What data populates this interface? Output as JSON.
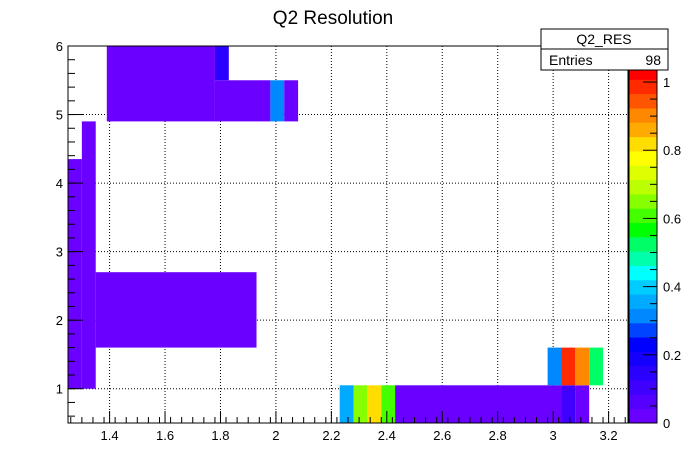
{
  "chart_data": {
    "type": "heatmap",
    "title": "Q2 Resolution",
    "xlabel": "",
    "ylabel": "",
    "xlim": [
      1.25,
      3.27
    ],
    "ylim": [
      0.5,
      6.0
    ],
    "zlim": [
      0,
      1.05
    ],
    "grid": true,
    "x_ticks": [
      1.4,
      1.6,
      1.8,
      2,
      2.2,
      2.4,
      2.6,
      2.8,
      3,
      3.2
    ],
    "x_tick_labels": [
      "1.4",
      "1.6",
      "1.8",
      "2",
      "2.2",
      "2.4",
      "2.6",
      "2.8",
      "3",
      "3.2"
    ],
    "y_ticks": [
      1,
      2,
      3,
      4,
      5,
      6
    ],
    "y_tick_labels": [
      "1",
      "2",
      "3",
      "4",
      "5",
      "6"
    ],
    "z_ticks": [
      0,
      0.2,
      0.4,
      0.6,
      0.8,
      1
    ],
    "z_tick_labels": [
      "0",
      "0.2",
      "0.4",
      "0.6",
      "0.8",
      "1"
    ],
    "palette": [
      "#6a00ff",
      "#5500ff",
      "#3f00ff",
      "#2a00ff",
      "#1500ff",
      "#0000ff",
      "#0044ff",
      "#0088ff",
      "#00aaff",
      "#00ccff",
      "#00ffff",
      "#00ffaa",
      "#00ff66",
      "#00ff00",
      "#44ff00",
      "#88ff00",
      "#bbff00",
      "#ddff00",
      "#ffff00",
      "#ffdd00",
      "#ffaa00",
      "#ff8800",
      "#ff5500",
      "#ff2a00",
      "#ff0000"
    ],
    "stats": {
      "name": "Q2_RES",
      "entries_label": "Entries",
      "entries_value": "98"
    },
    "cells": [
      {
        "x0": 1.25,
        "x1": 1.3,
        "y0": 1.0,
        "y1": 4.35,
        "z": 0.02
      },
      {
        "x0": 1.3,
        "x1": 1.35,
        "y0": 1.0,
        "y1": 4.9,
        "z": 0.02
      },
      {
        "x0": 1.35,
        "x1": 1.93,
        "y0": 1.6,
        "y1": 2.7,
        "z": 0.02
      },
      {
        "x0": 1.39,
        "x1": 1.78,
        "y0": 4.9,
        "y1": 6.0,
        "z": 0.02
      },
      {
        "x0": 1.78,
        "x1": 1.83,
        "y0": 5.5,
        "y1": 6.0,
        "z": 0.15
      },
      {
        "x0": 1.78,
        "x1": 1.98,
        "y0": 4.9,
        "y1": 5.5,
        "z": 0.02
      },
      {
        "x0": 1.98,
        "x1": 2.03,
        "y0": 4.9,
        "y1": 5.5,
        "z": 0.33
      },
      {
        "x0": 2.03,
        "x1": 2.08,
        "y0": 4.9,
        "y1": 5.5,
        "z": 0.02
      },
      {
        "x0": 2.23,
        "x1": 2.28,
        "y0": 0.5,
        "y1": 1.05,
        "z": 0.35
      },
      {
        "x0": 2.28,
        "x1": 2.33,
        "y0": 0.5,
        "y1": 1.05,
        "z": 0.65
      },
      {
        "x0": 2.33,
        "x1": 2.38,
        "y0": 0.5,
        "y1": 1.05,
        "z": 0.82
      },
      {
        "x0": 2.38,
        "x1": 2.43,
        "y0": 0.5,
        "y1": 1.05,
        "z": 0.6
      },
      {
        "x0": 2.43,
        "x1": 3.03,
        "y0": 0.5,
        "y1": 1.05,
        "z": 0.02
      },
      {
        "x0": 3.03,
        "x1": 3.08,
        "y0": 0.5,
        "y1": 1.05,
        "z": 0.1
      },
      {
        "x0": 3.08,
        "x1": 3.13,
        "y0": 0.5,
        "y1": 1.05,
        "z": 0.02
      },
      {
        "x0": 2.98,
        "x1": 3.03,
        "y0": 1.05,
        "y1": 1.6,
        "z": 0.33
      },
      {
        "x0": 3.03,
        "x1": 3.08,
        "y0": 1.05,
        "y1": 1.6,
        "z": 1.0
      },
      {
        "x0": 3.08,
        "x1": 3.13,
        "y0": 1.05,
        "y1": 1.6,
        "z": 0.92
      },
      {
        "x0": 3.13,
        "x1": 3.18,
        "y0": 1.05,
        "y1": 1.6,
        "z": 0.52
      }
    ]
  }
}
